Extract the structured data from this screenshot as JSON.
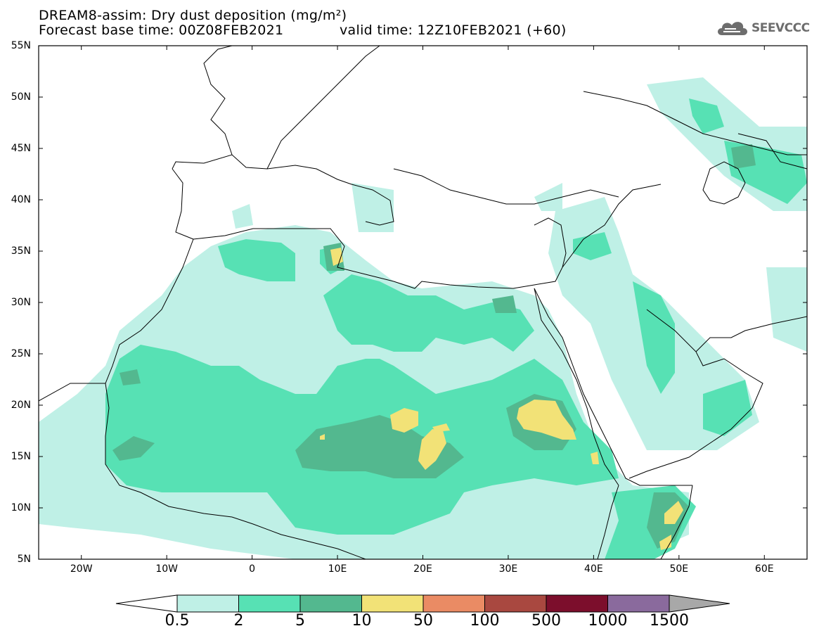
{
  "header": {
    "title_line1": "DREAM8-assim: Dry dust deposition (mg/m²)",
    "title_line2": "Forecast base time: 00Z08FEB2021",
    "valid_time": "valid time: 12Z10FEB2021 (+60)"
  },
  "logo": {
    "text": "SEEVCCC",
    "icon": "cloud-icon"
  },
  "map": {
    "lon_range": [
      -25,
      65
    ],
    "lat_range": [
      5,
      55
    ],
    "lat_labels": [
      "55N",
      "50N",
      "45N",
      "40N",
      "35N",
      "30N",
      "25N",
      "20N",
      "15N",
      "10N",
      "5N"
    ],
    "lon_labels": [
      "20W",
      "10W",
      "0",
      "10E",
      "20E",
      "30E",
      "40E",
      "50E",
      "60E"
    ]
  },
  "colorbar": {
    "labels": [
      "0.5",
      "2",
      "5",
      "10",
      "50",
      "100",
      "500",
      "1000",
      "1500"
    ],
    "colors": [
      "#bff0e6",
      "#57e1b4",
      "#53b88f",
      "#f2e277",
      "#ea8b64",
      "#a94840",
      "#7c0e2c",
      "#8a6a9d"
    ],
    "under_color": "#ffffff",
    "over_color": "#a8a8a8"
  }
}
